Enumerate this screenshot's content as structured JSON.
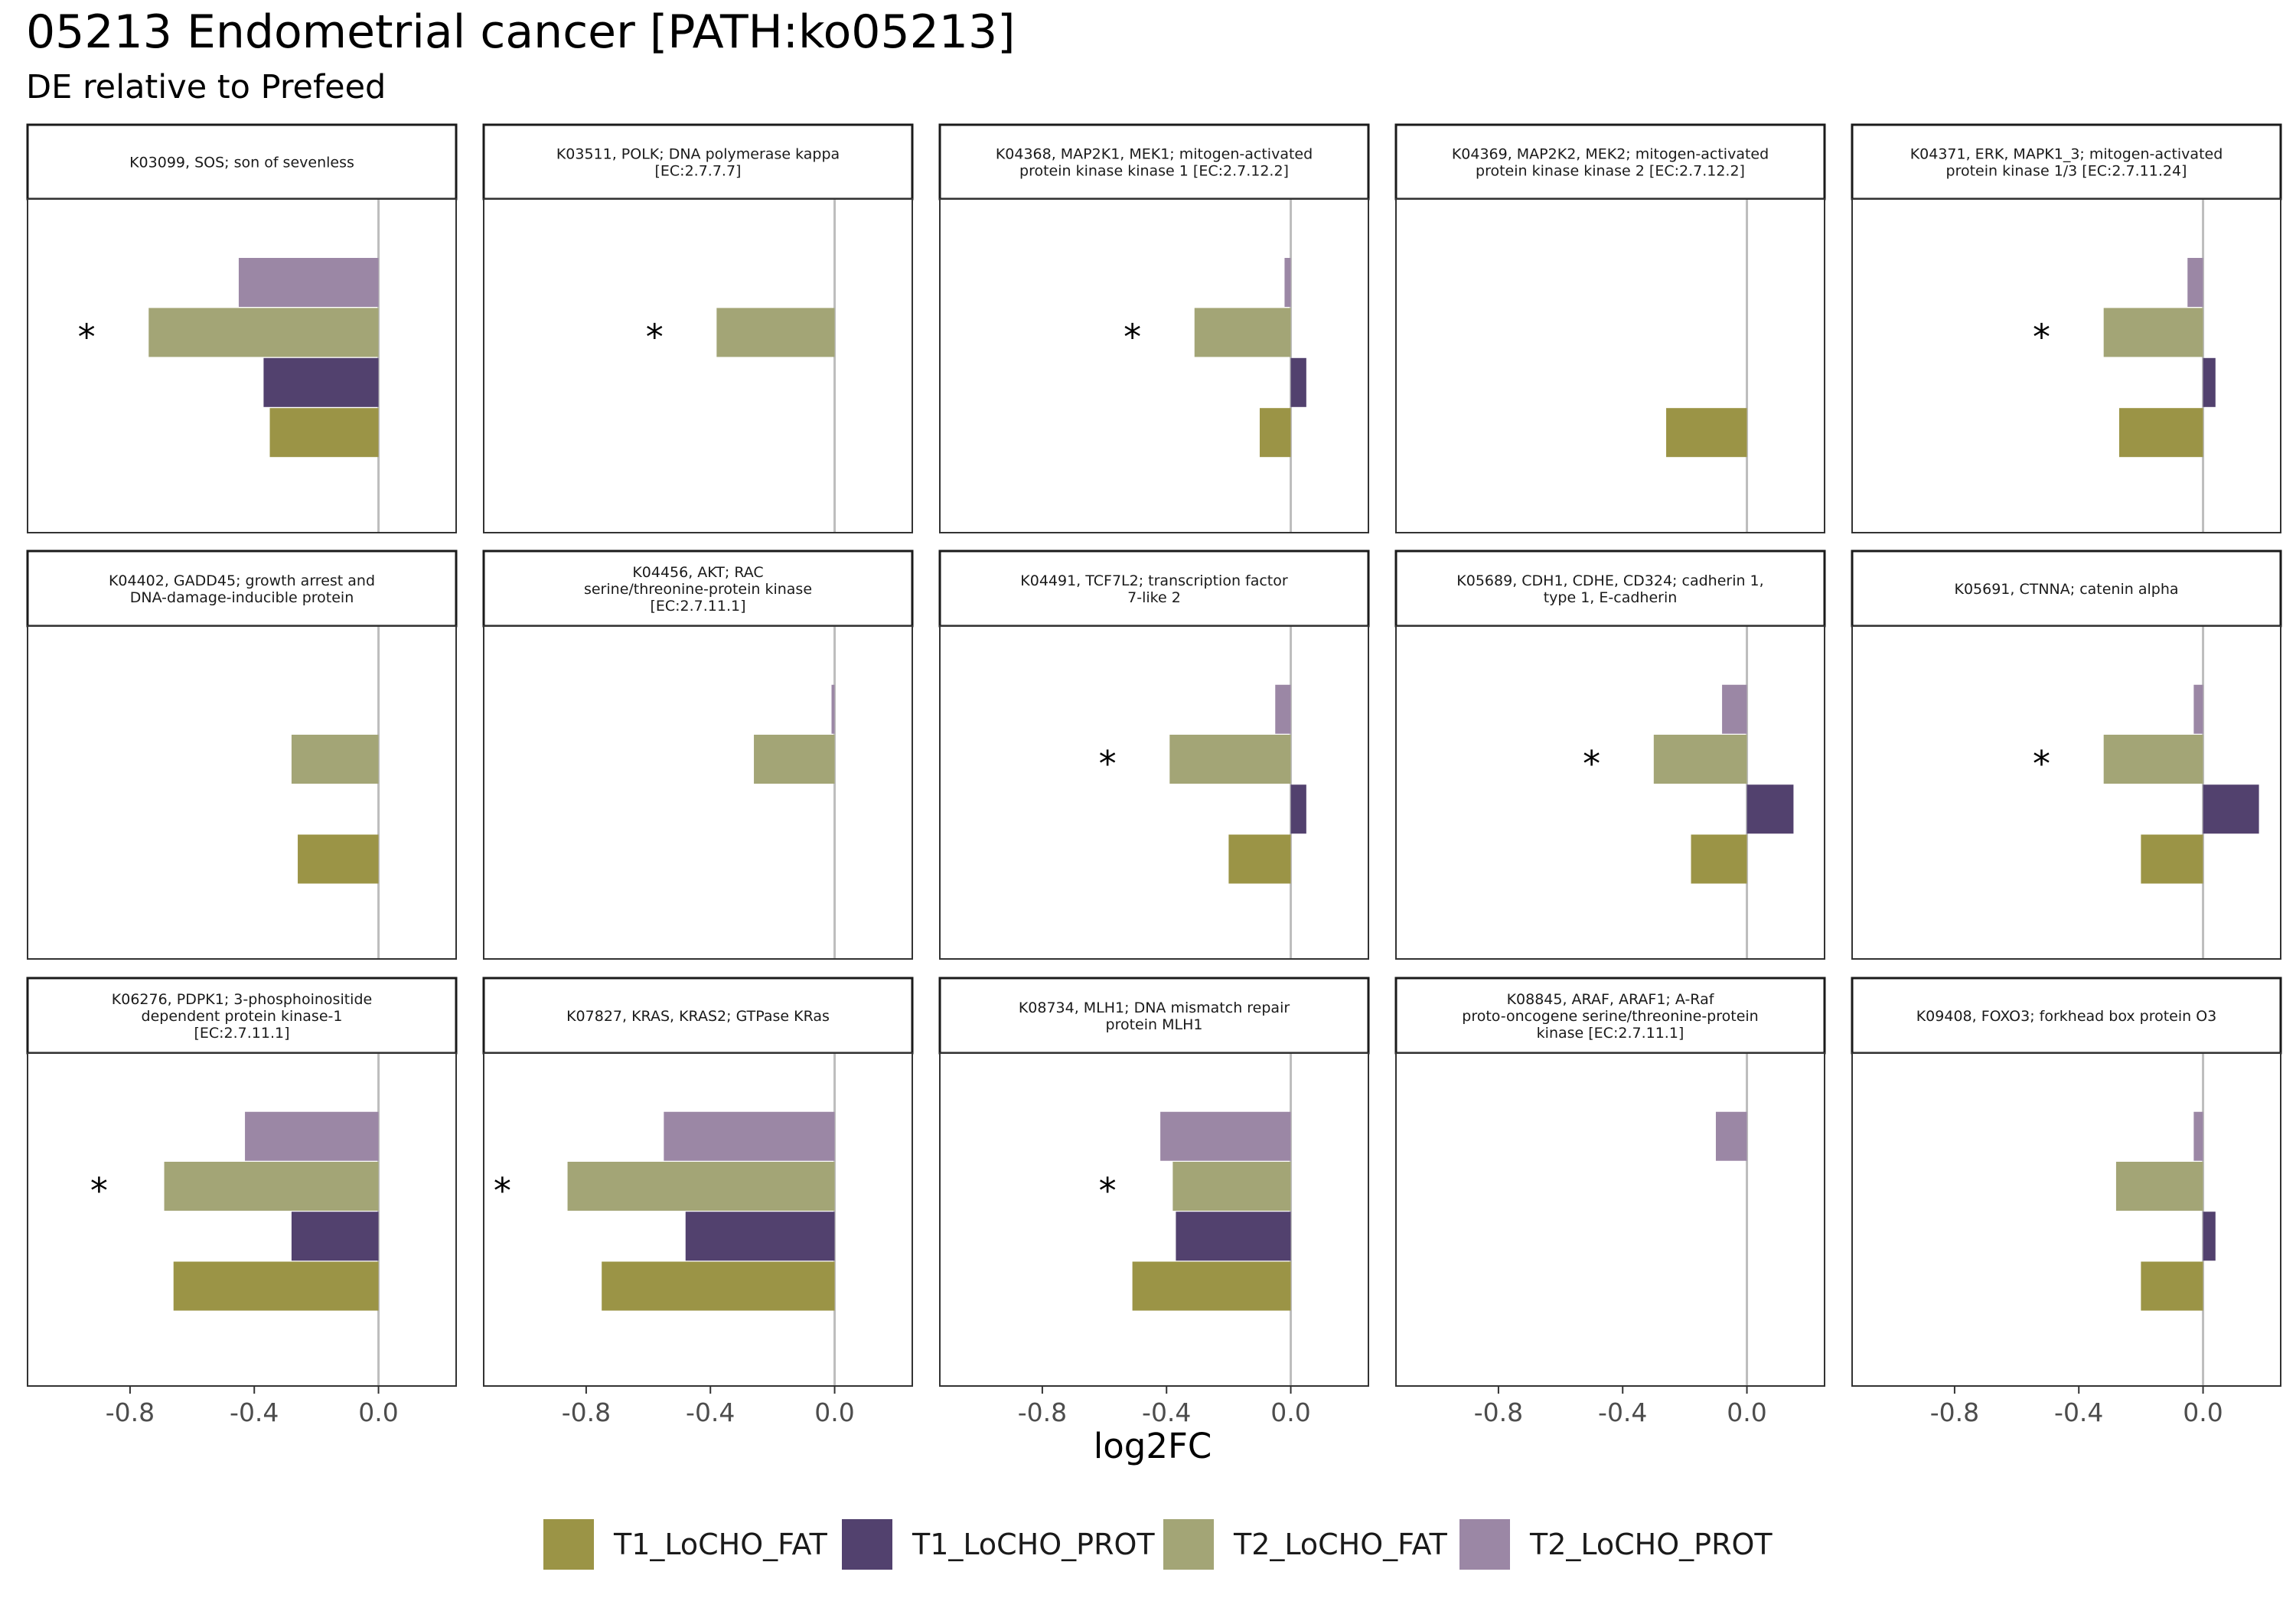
{
  "title": "05213 Endometrial cancer [PATH:ko05213]",
  "subtitle": "DE relative to Prefeed",
  "chart_data": {
    "type": "bar",
    "orientation": "horizontal",
    "facet_layout": "3 rows x 5 columns",
    "xlabel": "log2FC",
    "xlim": [
      -1.13,
      0.25
    ],
    "x_ticks": [
      -0.8,
      -0.4,
      0.0
    ],
    "x_tick_labels": [
      "-0.8",
      "-0.4",
      "0.0"
    ],
    "legend_position": "bottom",
    "significance_marker": "*",
    "series": [
      {
        "name": "T1_LoCHO_FAT",
        "color": "#9b9446"
      },
      {
        "name": "T1_LoCHO_PROT",
        "color": "#52416e"
      },
      {
        "name": "T2_LoCHO_FAT",
        "color": "#a3a576"
      },
      {
        "name": "T2_LoCHO_PROT",
        "color": "#9b87a5"
      }
    ],
    "panels": [
      {
        "label": [
          "K03099, SOS; son of sevenless"
        ],
        "values": {
          "T2_LoCHO_PROT": -0.45,
          "T2_LoCHO_FAT": -0.74,
          "T1_LoCHO_PROT": -0.37,
          "T1_LoCHO_FAT": -0.35
        },
        "star": -0.94
      },
      {
        "label": [
          "K03511, POLK; DNA polymerase kappa",
          "[EC:2.7.7.7]"
        ],
        "values": {
          "T2_LoCHO_FAT": -0.38
        },
        "star": -0.58
      },
      {
        "label": [
          "K04368, MAP2K1, MEK1; mitogen-activated",
          "protein kinase kinase 1 [EC:2.7.12.2]"
        ],
        "values": {
          "T2_LoCHO_PROT": -0.02,
          "T2_LoCHO_FAT": -0.31,
          "T1_LoCHO_PROT": 0.05,
          "T1_LoCHO_FAT": -0.1
        },
        "star": -0.51
      },
      {
        "label": [
          "K04369, MAP2K2, MEK2; mitogen-activated",
          "protein kinase kinase 2 [EC:2.7.12.2]"
        ],
        "values": {
          "T1_LoCHO_FAT": -0.26
        },
        "star": null
      },
      {
        "label": [
          "K04371, ERK, MAPK1_3; mitogen-activated",
          "protein kinase 1/3 [EC:2.7.11.24]"
        ],
        "values": {
          "T2_LoCHO_PROT": -0.05,
          "T2_LoCHO_FAT": -0.32,
          "T1_LoCHO_PROT": 0.04,
          "T1_LoCHO_FAT": -0.27
        },
        "star": -0.52
      },
      {
        "label": [
          "K04402, GADD45; growth arrest and",
          "DNA-damage-inducible protein"
        ],
        "values": {
          "T2_LoCHO_FAT": -0.28,
          "T1_LoCHO_FAT": -0.26
        },
        "star": null
      },
      {
        "label": [
          "K04456, AKT; RAC",
          "serine/threonine-protein kinase",
          "[EC:2.7.11.1]"
        ],
        "values": {
          "T2_LoCHO_PROT": -0.01,
          "T2_LoCHO_FAT": -0.26
        },
        "star": null
      },
      {
        "label": [
          "K04491, TCF7L2; transcription factor",
          "7-like 2"
        ],
        "values": {
          "T2_LoCHO_PROT": -0.05,
          "T2_LoCHO_FAT": -0.39,
          "T1_LoCHO_PROT": 0.05,
          "T1_LoCHO_FAT": -0.2
        },
        "star": -0.59
      },
      {
        "label": [
          "K05689, CDH1, CDHE, CD324; cadherin 1,",
          "type 1, E-cadherin"
        ],
        "values": {
          "T2_LoCHO_PROT": -0.08,
          "T2_LoCHO_FAT": -0.3,
          "T1_LoCHO_PROT": 0.15,
          "T1_LoCHO_FAT": -0.18
        },
        "star": -0.5
      },
      {
        "label": [
          "K05691, CTNNA; catenin alpha"
        ],
        "values": {
          "T2_LoCHO_PROT": -0.03,
          "T2_LoCHO_FAT": -0.32,
          "T1_LoCHO_PROT": 0.18,
          "T1_LoCHO_FAT": -0.2
        },
        "star": -0.52
      },
      {
        "label": [
          "K06276, PDPK1; 3-phosphoinositide",
          "dependent protein kinase-1",
          "[EC:2.7.11.1]"
        ],
        "values": {
          "T2_LoCHO_PROT": -0.43,
          "T2_LoCHO_FAT": -0.69,
          "T1_LoCHO_PROT": -0.28,
          "T1_LoCHO_FAT": -0.66
        },
        "star": -0.9
      },
      {
        "label": [
          "K07827, KRAS, KRAS2; GTPase KRas"
        ],
        "values": {
          "T2_LoCHO_PROT": -0.55,
          "T2_LoCHO_FAT": -0.86,
          "T1_LoCHO_PROT": -0.48,
          "T1_LoCHO_FAT": -0.75
        },
        "star": -1.07
      },
      {
        "label": [
          "K08734, MLH1; DNA mismatch repair",
          "protein MLH1"
        ],
        "values": {
          "T2_LoCHO_PROT": -0.42,
          "T2_LoCHO_FAT": -0.38,
          "T1_LoCHO_PROT": -0.37,
          "T1_LoCHO_FAT": -0.51
        },
        "star": -0.59
      },
      {
        "label": [
          "K08845, ARAF, ARAF1; A-Raf",
          "proto-oncogene serine/threonine-protein",
          "kinase [EC:2.7.11.1]"
        ],
        "values": {
          "T2_LoCHO_PROT": -0.1
        },
        "star": null
      },
      {
        "label": [
          "K09408, FOXO3; forkhead box protein O3"
        ],
        "values": {
          "T2_LoCHO_PROT": -0.03,
          "T2_LoCHO_FAT": -0.28,
          "T1_LoCHO_PROT": 0.04,
          "T1_LoCHO_FAT": -0.2
        },
        "star": null
      }
    ]
  }
}
